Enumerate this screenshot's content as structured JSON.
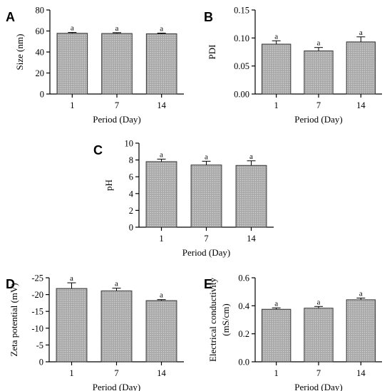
{
  "figure": {
    "bar_fill": "#a9a9a9",
    "pattern_dot": "#d4d4d4"
  },
  "chart_data": [
    {
      "type": "bar",
      "panel": "A",
      "categories": [
        "1",
        "7",
        "14"
      ],
      "values": [
        57.8,
        57.6,
        57.3
      ],
      "errors": [
        0.8,
        0.8,
        0.7
      ],
      "significance": [
        "a",
        "a",
        "a"
      ],
      "xlabel": "Period (Day)",
      "ylabel": "Size (nm)",
      "ylim": [
        0,
        80
      ],
      "yticks": [
        0,
        20,
        40,
        60,
        80
      ],
      "ytick_labels": [
        "0",
        "20",
        "40",
        "60",
        "80"
      ]
    },
    {
      "type": "bar",
      "panel": "B",
      "categories": [
        "1",
        "7",
        "14"
      ],
      "values": [
        0.089,
        0.077,
        0.093
      ],
      "errors": [
        0.006,
        0.006,
        0.009
      ],
      "significance": [
        "a",
        "a",
        "a"
      ],
      "xlabel": "Period (Day)",
      "ylabel": "PDI",
      "ylim": [
        0,
        0.15
      ],
      "yticks": [
        0,
        0.05,
        0.1,
        0.15
      ],
      "ytick_labels": [
        "0.00",
        "0.05",
        "0.10",
        "0.15"
      ]
    },
    {
      "type": "bar",
      "panel": "C",
      "categories": [
        "1",
        "7",
        "14"
      ],
      "values": [
        7.8,
        7.4,
        7.35
      ],
      "errors": [
        0.3,
        0.45,
        0.55
      ],
      "significance": [
        "a",
        "a",
        "a"
      ],
      "xlabel": "Period (Day)",
      "ylabel": "pH",
      "ylim": [
        0,
        10
      ],
      "yticks": [
        0,
        2,
        4,
        6,
        8,
        10
      ],
      "ytick_labels": [
        "0",
        "2",
        "4",
        "6",
        "8",
        "10"
      ]
    },
    {
      "type": "bar",
      "panel": "D",
      "categories": [
        "1",
        "7",
        "14"
      ],
      "values": [
        -21.8,
        -21.1,
        -18.2
      ],
      "errors": [
        1.7,
        0.8,
        0.3
      ],
      "significance": [
        "a",
        "a",
        "a"
      ],
      "xlabel": "Period (Day)",
      "ylabel": "Zeta potential (mV)",
      "ylim": [
        0,
        -25
      ],
      "yticks": [
        0,
        -5,
        -10,
        -15,
        -20,
        -25
      ],
      "ytick_labels": [
        "0",
        "-5",
        "-10",
        "-15",
        "-20",
        "-25"
      ]
    },
    {
      "type": "bar",
      "panel": "E",
      "categories": [
        "1",
        "7",
        "14"
      ],
      "values": [
        0.375,
        0.383,
        0.443
      ],
      "errors": [
        0.01,
        0.012,
        0.012
      ],
      "significance": [
        "a",
        "a",
        "a"
      ],
      "xlabel": "Period (Day)",
      "ylabel": "Electrical conductivity (mS/cm)",
      "ylabel_lines": [
        "Electrical conductivity",
        "(mS/cm)"
      ],
      "ylim": [
        0,
        0.6
      ],
      "yticks": [
        0,
        0.2,
        0.4,
        0.6
      ],
      "ytick_labels": [
        "0.0",
        "0.2",
        "0.4",
        "0.6"
      ]
    }
  ]
}
